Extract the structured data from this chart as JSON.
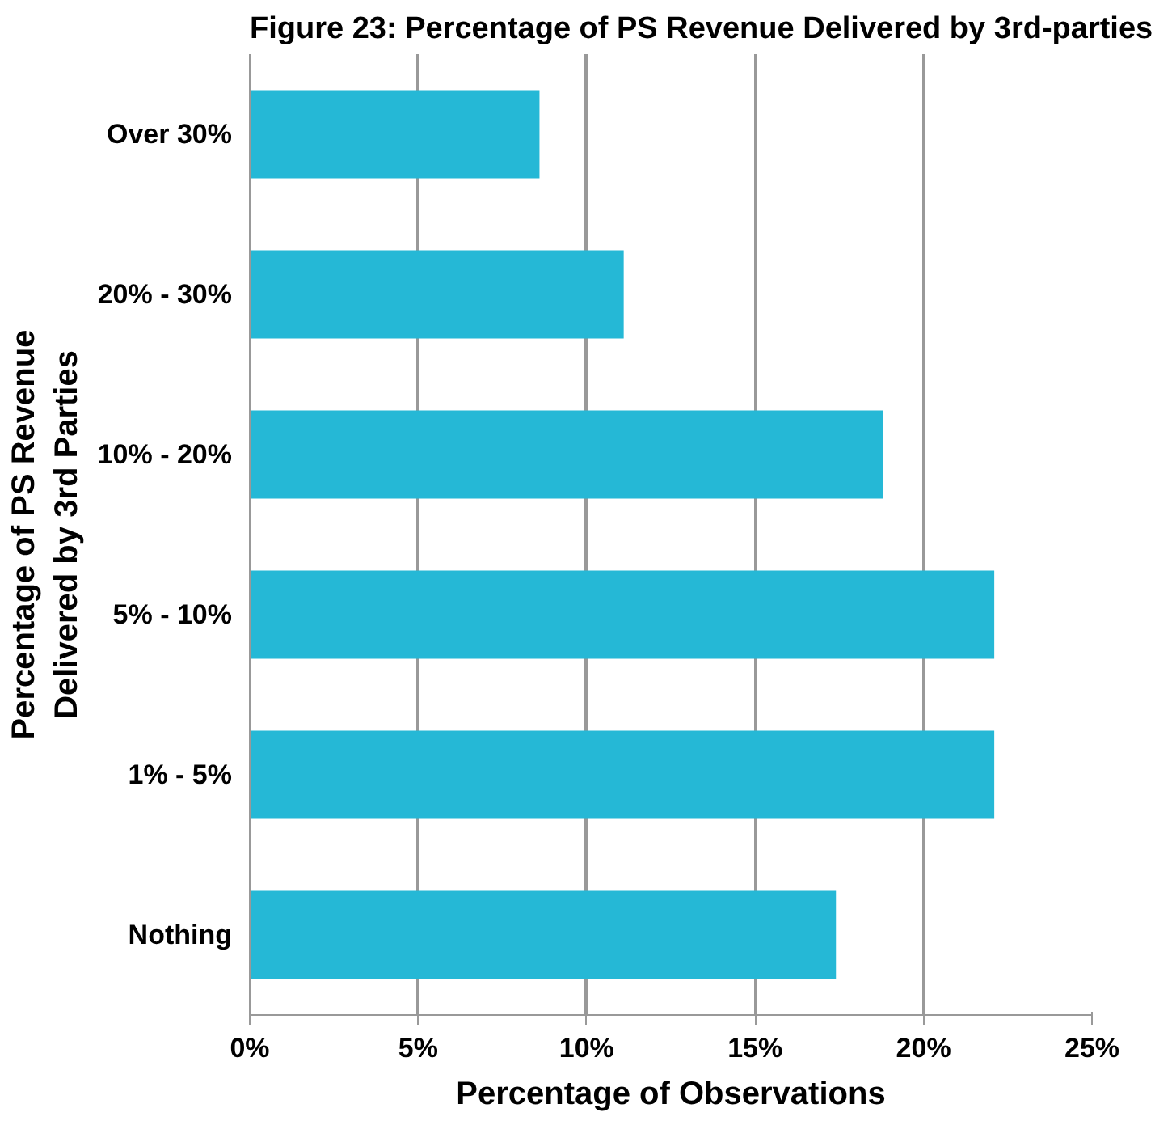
{
  "chart_data": {
    "type": "bar",
    "orientation": "horizontal",
    "title": "Figure 23:  Percentage of PS Revenue Delivered by 3rd-parties",
    "xlabel": "Percentage of Observations",
    "ylabel": "Percentage of PS Revenue\nDelivered by 3rd Parties",
    "categories": [
      "Over 30%",
      "20% - 30%",
      "10% - 20%",
      "5% - 10%",
      "1% - 5%",
      "Nothing"
    ],
    "values": [
      8.6,
      11.1,
      18.8,
      22.1,
      22.1,
      17.4
    ],
    "color": "#25b8d6",
    "xlim": [
      0,
      25
    ],
    "xticks": [
      {
        "value": 0,
        "label": "0%"
      },
      {
        "value": 5,
        "label": "5%"
      },
      {
        "value": 10,
        "label": "10%"
      },
      {
        "value": 15,
        "label": "15%"
      },
      {
        "value": 20,
        "label": "20%"
      },
      {
        "value": 25,
        "label": "25%"
      }
    ],
    "grid": "x"
  }
}
